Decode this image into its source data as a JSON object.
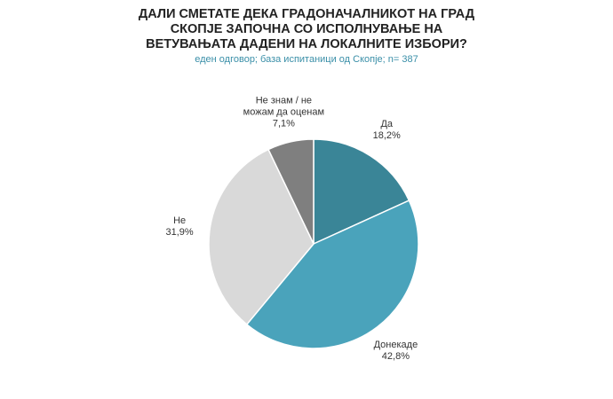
{
  "chart_data": {
    "type": "pie",
    "title": "ДАЛИ СМЕТАТЕ ДЕКА ГРАДОНАЧАЛНИКОТ НА ГРАД СКОПЈЕ ЗАПОЧНА СО ИСПОЛНУВАЊЕ НА ВЕТУВАЊАТА ДАДЕНИ НА ЛОКАЛНИТЕ ИЗБОРИ?",
    "subtitle": "еден одговор; база испитаници од Скопје; n= 387",
    "categories": [
      "Да",
      "Донекаде",
      "Не",
      "Не знам / не можам да оценам"
    ],
    "values": [
      18.2,
      42.8,
      31.9,
      7.1
    ],
    "value_labels": [
      "18,2%",
      "42,8%",
      "31,9%",
      "7,1%"
    ],
    "colors": [
      "#3a8597",
      "#4aa3bb",
      "#d9d9d9",
      "#7f7f7f"
    ]
  }
}
